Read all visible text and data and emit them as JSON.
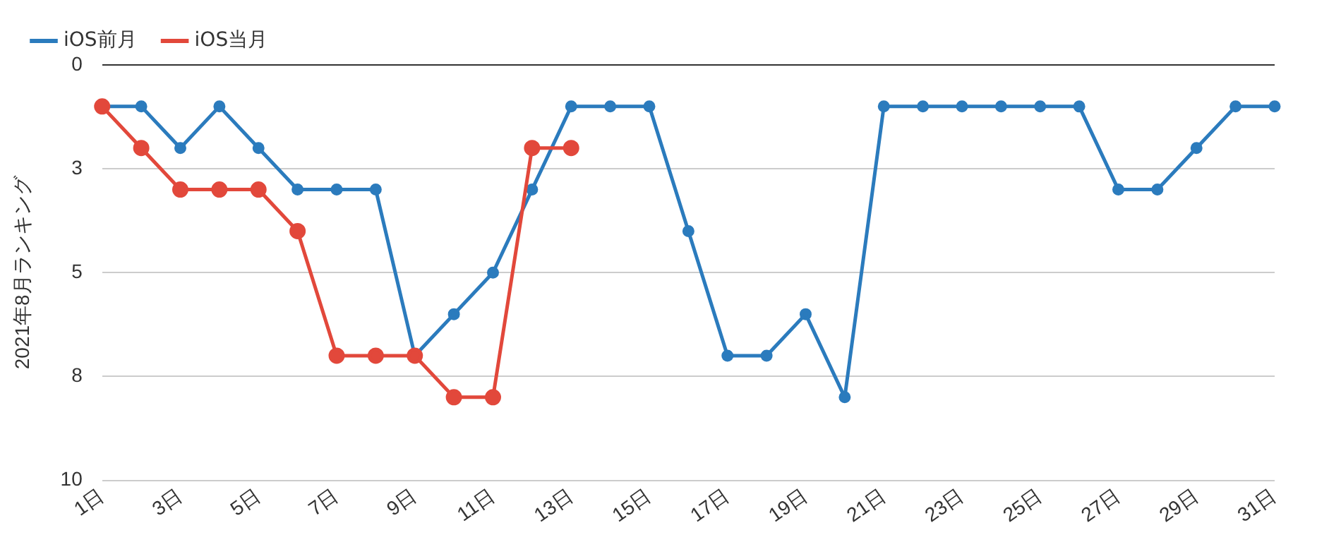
{
  "chart_data": {
    "type": "line",
    "ylabel": "2021年8月ランキング",
    "categories": [
      "1日",
      null,
      "3日",
      null,
      "5日",
      null,
      "7日",
      null,
      "9日",
      null,
      "11日",
      null,
      "13日",
      null,
      "15日",
      null,
      "17日",
      null,
      "19日",
      null,
      "21日",
      null,
      "23日",
      null,
      "25日",
      null,
      "27日",
      null,
      "29日",
      null,
      "31日"
    ],
    "series": [
      {
        "name": "iOS前月",
        "color": "#2b7bbd",
        "values": [
          1,
          1,
          2,
          1,
          2,
          3,
          3,
          3,
          7,
          6,
          5,
          3,
          1,
          1,
          1,
          4,
          7,
          7,
          6,
          8,
          1,
          1,
          1,
          1,
          1,
          1,
          3,
          3,
          2,
          1,
          1
        ]
      },
      {
        "name": "iOS当月",
        "color": "#e2483b",
        "values": [
          1,
          2,
          3,
          3,
          3,
          4,
          7,
          7,
          7,
          8,
          8,
          2,
          2,
          null,
          null,
          null,
          null,
          null,
          null,
          null,
          null,
          null,
          null,
          null,
          null,
          null,
          null,
          null,
          null,
          null,
          null
        ]
      }
    ],
    "ylim": [
      10,
      0
    ],
    "yticks": [
      0,
      {
        "value": 2.5,
        "label": "3"
      },
      5,
      {
        "value": 7.5,
        "label": "8"
      },
      10
    ],
    "grid": "y",
    "legend": "top left",
    "marker": "circle",
    "line_style": "solid"
  }
}
